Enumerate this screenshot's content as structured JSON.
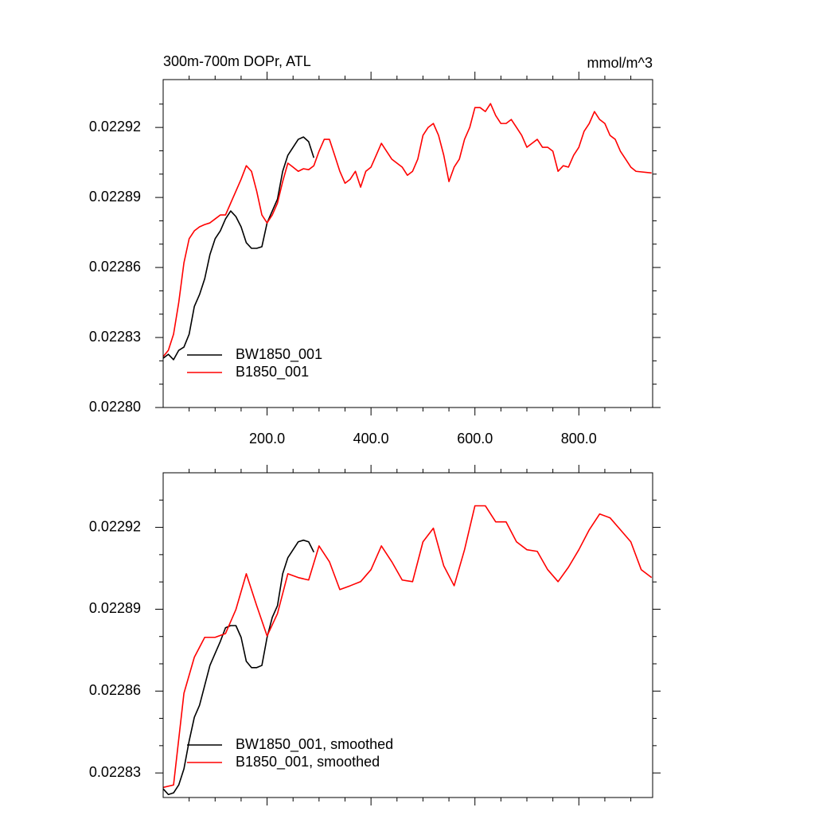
{
  "chart_data": [
    {
      "type": "line",
      "title": "300m-700m DOPr, ATL",
      "subtitle": "mmol/m^3",
      "xlim": [
        0,
        942
      ],
      "ylim": [
        0.0228,
        0.0229405
      ],
      "xticks": [
        {
          "value": 200,
          "label": "200.0"
        },
        {
          "value": 400,
          "label": "400.0"
        },
        {
          "value": 600,
          "label": "600.0"
        },
        {
          "value": 800,
          "label": "800.0"
        }
      ],
      "xminorticks": [
        50,
        100,
        150,
        250,
        300,
        350,
        450,
        500,
        550,
        650,
        700,
        750,
        850,
        900
      ],
      "yticks": [
        {
          "value": 0.0228,
          "label": "0.02280"
        },
        0.02283,
        0.02286,
        0.02289,
        0.02292
      ],
      "yminorticks": [
        0.02281,
        0.02282,
        0.02284,
        0.02285,
        0.02287,
        0.02288,
        0.0229,
        0.02291,
        0.02293
      ],
      "legend": "lower left",
      "series": [
        {
          "name": "BW1850_001",
          "color": "#000000",
          "x": [
            0,
            10,
            20,
            30,
            40,
            50,
            60,
            70,
            80,
            90,
            100,
            110,
            120,
            130,
            140,
            150,
            160,
            170,
            180,
            190,
            200,
            210,
            220,
            230,
            240,
            250,
            260,
            270,
            280,
            290
          ],
          "values": [
            0.0228211,
            0.0228228,
            0.0228205,
            0.0228245,
            0.0228259,
            0.0228314,
            0.0228433,
            0.0228484,
            0.0228552,
            0.0228655,
            0.0228723,
            0.0228757,
            0.0228808,
            0.0228842,
            0.0228818,
            0.0228774,
            0.0228706,
            0.0228682,
            0.0228682,
            0.0228689,
            0.0228791,
            0.0228842,
            0.0228893,
            0.0229012,
            0.0229081,
            0.0229115,
            0.0229149,
            0.0229159,
            0.0229139,
            0.022907
          ]
        },
        {
          "name": "B1850_001",
          "color": "#ff0000",
          "x": [
            0,
            10,
            20,
            30,
            40,
            50,
            60,
            70,
            80,
            90,
            100,
            110,
            120,
            130,
            140,
            150,
            160,
            170,
            180,
            190,
            200,
            210,
            220,
            230,
            240,
            250,
            260,
            270,
            280,
            290,
            300,
            310,
            320,
            330,
            340,
            350,
            360,
            370,
            380,
            390,
            400,
            410,
            420,
            430,
            440,
            450,
            460,
            470,
            480,
            490,
            500,
            510,
            520,
            530,
            540,
            550,
            560,
            570,
            580,
            590,
            600,
            610,
            620,
            630,
            640,
            650,
            660,
            670,
            680,
            690,
            700,
            710,
            720,
            730,
            740,
            750,
            760,
            770,
            780,
            790,
            800,
            810,
            820,
            830,
            840,
            850,
            860,
            870,
            880,
            890,
            900,
            910,
            940
          ],
          "values": [
            0.0228218,
            0.0228245,
            0.0228314,
            0.022845,
            0.022862,
            0.0228723,
            0.0228757,
            0.0228774,
            0.0228784,
            0.0228791,
            0.0228808,
            0.0228825,
            0.0228825,
            0.0228876,
            0.0228927,
            0.0228978,
            0.0229036,
            0.0229012,
            0.0228927,
            0.0228825,
            0.0228791,
            0.0228825,
            0.0228876,
            0.0228968,
            0.0229047,
            0.022903,
            0.0229012,
            0.0229023,
            0.0229019,
            0.0229036,
            0.0229098,
            0.0229149,
            0.0229149,
            0.0229081,
            0.0229012,
            0.0228961,
            0.0228978,
            0.0229012,
            0.0228944,
            0.0229012,
            0.022903,
            0.0229081,
            0.0229132,
            0.0229098,
            0.0229064,
            0.0229047,
            0.022903,
            0.0228995,
            0.0229012,
            0.0229064,
            0.0229166,
            0.02292,
            0.0229217,
            0.0229166,
            0.0229081,
            0.0228968,
            0.022903,
            0.0229064,
            0.0229149,
            0.02292,
            0.0229285,
            0.0229285,
            0.0229268,
            0.0229302,
            0.0229251,
            0.0229217,
            0.0229217,
            0.0229234,
            0.02292,
            0.0229166,
            0.0229115,
            0.0229132,
            0.0229149,
            0.0229115,
            0.0229115,
            0.0229098,
            0.0229012,
            0.0229036,
            0.022903,
            0.0229081,
            0.0229115,
            0.0229183,
            0.0229217,
            0.0229268,
            0.0229234,
            0.0229217,
            0.0229166,
            0.0229149,
            0.0229098,
            0.0229064,
            0.022903,
            0.0229012,
            0.0229005
          ]
        }
      ]
    },
    {
      "type": "line",
      "xlim": [
        0,
        942
      ],
      "ylim": [
        0.022821,
        0.02294
      ],
      "xticks": [
        200,
        400,
        600,
        800
      ],
      "xminorticks": [
        50,
        100,
        150,
        250,
        300,
        350,
        450,
        500,
        550,
        650,
        700,
        750,
        850,
        900
      ],
      "yticks": [
        0.02283,
        0.02286,
        0.02289,
        0.02292
      ],
      "yminorticks": [
        0.02284,
        0.02285,
        0.02287,
        0.02288,
        0.0229,
        0.02291,
        0.02293
      ],
      "legend": "lower left",
      "series": [
        {
          "name": "BW1850_001, smoothed",
          "color": "#000000",
          "x": [
            0,
            10,
            20,
            30,
            40,
            50,
            60,
            70,
            80,
            90,
            100,
            110,
            120,
            130,
            140,
            150,
            160,
            170,
            180,
            190,
            200,
            210,
            220,
            230,
            240,
            250,
            260,
            270,
            280,
            290
          ],
          "values": [
            0.0228242,
            0.0228221,
            0.0228227,
            0.0228256,
            0.0228315,
            0.0228417,
            0.0228504,
            0.0228548,
            0.0228621,
            0.0228694,
            0.0228738,
            0.0228782,
            0.0228832,
            0.022884,
            0.022884,
            0.0228797,
            0.0228709,
            0.0228686,
            0.0228686,
            0.0228694,
            0.0228797,
            0.022887,
            0.0228913,
            0.022903,
            0.0229089,
            0.0229118,
            0.0229147,
            0.0229153,
            0.0229147,
            0.0229109
          ]
        },
        {
          "name": "B1850_001, smoothed",
          "color": "#ff0000",
          "x": [
            0,
            20,
            40,
            60,
            80,
            100,
            120,
            140,
            160,
            180,
            200,
            220,
            240,
            260,
            280,
            300,
            320,
            340,
            360,
            380,
            400,
            420,
            440,
            460,
            480,
            500,
            520,
            540,
            560,
            580,
            600,
            620,
            640,
            660,
            680,
            700,
            720,
            740,
            760,
            780,
            800,
            820,
            840,
            860,
            880,
            900,
            920,
            940
          ],
          "values": [
            0.0228247,
            0.0228256,
            0.0228592,
            0.0228724,
            0.0228797,
            0.0228797,
            0.0228811,
            0.0228899,
            0.022903,
            0.0228913,
            0.0228802,
            0.0228884,
            0.022903,
            0.0229016,
            0.0229007,
            0.0229132,
            0.0229074,
            0.0228972,
            0.0228986,
            0.0229001,
            0.0229045,
            0.0229132,
            0.0229074,
            0.0229007,
            0.0229001,
            0.0229147,
            0.0229197,
            0.0229059,
            0.0228986,
            0.0229118,
            0.0229279,
            0.0229279,
            0.022922,
            0.022922,
            0.0229147,
            0.0229118,
            0.0229112,
            0.0229045,
            0.0229001,
            0.0229054,
            0.0229118,
            0.0229191,
            0.0229249,
            0.0229235,
            0.0229191,
            0.0229147,
            0.0229045,
            0.0229016
          ]
        }
      ]
    }
  ]
}
